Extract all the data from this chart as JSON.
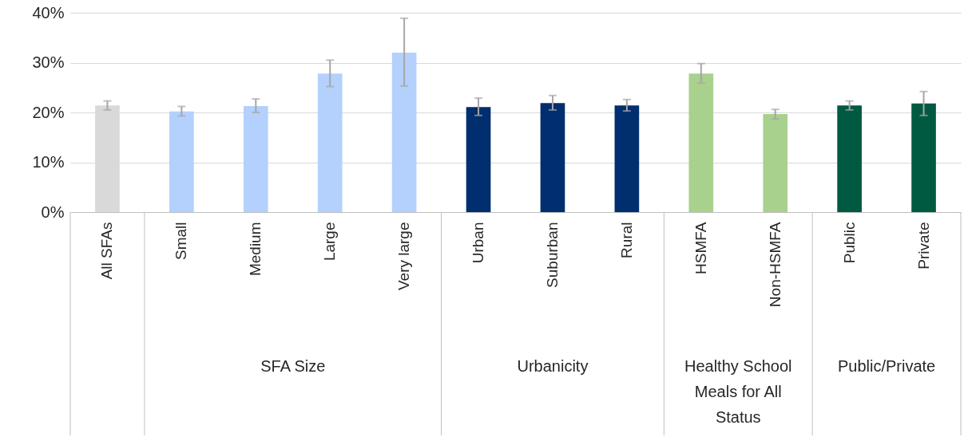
{
  "chart_data": {
    "type": "bar",
    "categories": [
      "All SFAs",
      "Small",
      "Medium",
      "Large",
      "Very large",
      "Urban",
      "Suburban",
      "Rural",
      "HSMFA",
      "Non-HSMFA",
      "Public",
      "Private"
    ],
    "values": [
      21.4,
      20.2,
      21.3,
      27.8,
      32.0,
      21.1,
      21.9,
      21.4,
      27.8,
      19.7,
      21.4,
      21.8
    ],
    "colors": [
      "#d9d9d9",
      "#b4d0fd",
      "#b4d0fd",
      "#b4d0fd",
      "#b4d0fd",
      "#002e6e",
      "#002e6e",
      "#002e6e",
      "#a9d18e",
      "#a9d18e",
      "#005a41",
      "#005a41"
    ],
    "errors": [
      [
        20.5,
        22.3
      ],
      [
        19.3,
        21.2
      ],
      [
        20.0,
        22.7
      ],
      [
        25.2,
        30.5
      ],
      [
        25.3,
        38.9
      ],
      [
        19.4,
        22.9
      ],
      [
        20.5,
        23.4
      ],
      [
        20.3,
        22.6
      ],
      [
        25.9,
        29.8
      ],
      [
        18.7,
        20.6
      ],
      [
        20.5,
        22.3
      ],
      [
        19.4,
        24.2
      ]
    ],
    "ylim": [
      0,
      40
    ],
    "yticks": [
      {
        "value": 0,
        "label": "0%"
      },
      {
        "value": 10,
        "label": "10%"
      },
      {
        "value": 20,
        "label": "20%"
      },
      {
        "value": 30,
        "label": "30%"
      },
      {
        "value": 40,
        "label": "40%"
      }
    ],
    "grid": "y",
    "annotations": [
      "SFA Size",
      "Urbanicity",
      "Healthy School Meals for All Status",
      "Public/Private"
    ]
  }
}
